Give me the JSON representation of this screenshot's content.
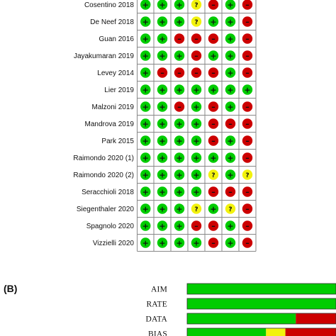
{
  "colors": {
    "low": "#00cc00",
    "high": "#cc0000",
    "unclear": "#f2f20d",
    "grid": "#888888"
  },
  "symbols": {
    "low": "+",
    "high": "–",
    "unclear": "?"
  },
  "chart_data": [
    {
      "type": "table",
      "legend": {
        "G": "low",
        "R": "high",
        "Y": "unclear"
      },
      "studies": [
        "Cosentino 2018",
        "De Neef 2018",
        "Guan 2016",
        "Jayakumaran 2019",
        "Levey 2014",
        "Lier 2019",
        "Malzoni 2019",
        "Mandrova 2019",
        "Park 2015",
        "Raimondo 2020 (1)",
        "Raimondo 2020 (2)",
        "Seracchioli 2018",
        "Siegenthaler 2020",
        "Spagnolo 2020",
        "Vizzielli 2020"
      ],
      "ratings": [
        [
          "G",
          "G",
          "G",
          "Y",
          "R",
          "G",
          "R"
        ],
        [
          "G",
          "G",
          "G",
          "Y",
          "G",
          "G",
          "R"
        ],
        [
          "G",
          "G",
          "R",
          "R",
          "R",
          "G",
          "R"
        ],
        [
          "G",
          "G",
          "G",
          "R",
          "G",
          "G",
          "R"
        ],
        [
          "G",
          "R",
          "R",
          "R",
          "R",
          "G",
          "R"
        ],
        [
          "G",
          "G",
          "G",
          "G",
          "G",
          "G",
          "G"
        ],
        [
          "G",
          "G",
          "R",
          "G",
          "R",
          "G",
          "R"
        ],
        [
          "G",
          "G",
          "G",
          "G",
          "R",
          "R",
          "R"
        ],
        [
          "G",
          "G",
          "G",
          "G",
          "R",
          "G",
          "R"
        ],
        [
          "G",
          "G",
          "G",
          "G",
          "G",
          "G",
          "R"
        ],
        [
          "G",
          "G",
          "G",
          "G",
          "Y",
          "G",
          "Y"
        ],
        [
          "G",
          "G",
          "G",
          "G",
          "R",
          "R",
          "R"
        ],
        [
          "G",
          "G",
          "G",
          "Y",
          "G",
          "Y",
          "R"
        ],
        [
          "G",
          "G",
          "G",
          "R",
          "R",
          "G",
          "R"
        ],
        [
          "G",
          "G",
          "G",
          "G",
          "R",
          "G",
          "R"
        ]
      ]
    },
    {
      "type": "bar",
      "panel": "(B)",
      "stacked": true,
      "percent": true,
      "categories": [
        "AIM",
        "RATE",
        "DATA",
        "BIAS"
      ],
      "series": [
        {
          "color_key": "low",
          "values": [
            100,
            100,
            73,
            53
          ]
        },
        {
          "color_key": "unclear",
          "values": [
            0,
            0,
            0,
            13
          ]
        },
        {
          "color_key": "high",
          "values": [
            0,
            0,
            27,
            34
          ]
        }
      ]
    }
  ]
}
